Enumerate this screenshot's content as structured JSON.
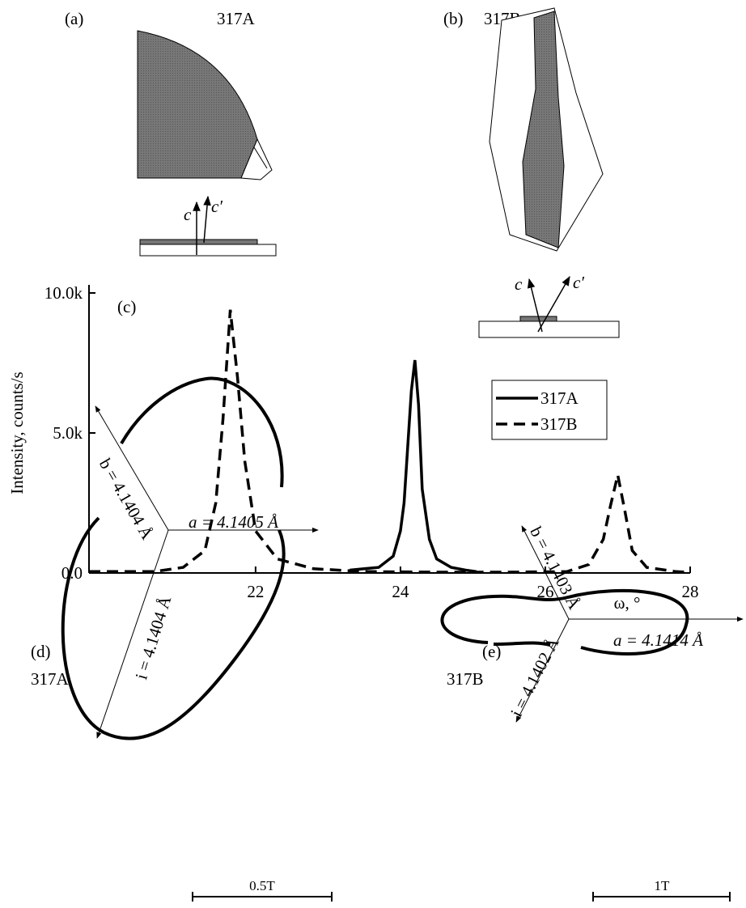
{
  "panel_a": {
    "label": "(a)",
    "sample": "317A",
    "c": "c",
    "c_prime": "c′"
  },
  "panel_b": {
    "label": "(b)",
    "sample": "317B",
    "c": "c",
    "c_prime": "c′"
  },
  "chart_data": {
    "type": "line",
    "title": "(c)",
    "x_label": "ω, °",
    "y_label": "Intensity, counts/s",
    "xlim": [
      19.7,
      28
    ],
    "ylim": [
      0,
      10000
    ],
    "xticks": [
      22,
      24,
      26,
      28
    ],
    "yticks": [
      {
        "value": 0,
        "label": "0.0"
      },
      {
        "value": 5000,
        "label": "5.0k"
      },
      {
        "value": 10000,
        "label": "10.0k"
      }
    ],
    "legend": "right",
    "series": [
      {
        "name": "317A",
        "color": "#000000",
        "style": "solid",
        "x": [
          23.3,
          23.5,
          23.7,
          23.9,
          24.0,
          24.05,
          24.1,
          24.15,
          24.2,
          24.25,
          24.3,
          24.4,
          24.5,
          24.7,
          24.9,
          25.05
        ],
        "values": [
          100,
          150,
          200,
          600,
          1500,
          2500,
          4500,
          6500,
          7600,
          6000,
          3000,
          1200,
          500,
          200,
          100,
          50
        ]
      },
      {
        "name": "317B",
        "color": "#000000",
        "style": "dashed",
        "x": [
          19.7,
          20.6,
          21.0,
          21.3,
          21.45,
          21.55,
          21.65,
          21.75,
          21.85,
          22.0,
          22.3,
          22.8,
          23.5,
          24.5,
          25.5,
          26.3,
          26.6,
          26.8,
          26.9,
          27.0,
          27.1,
          27.2,
          27.4,
          27.8,
          28.0
        ],
        "values": [
          50,
          50,
          200,
          800,
          2500,
          5500,
          9400,
          7000,
          4000,
          1500,
          500,
          150,
          50,
          30,
          30,
          50,
          300,
          1200,
          2400,
          3500,
          2200,
          800,
          200,
          50,
          20
        ]
      }
    ]
  },
  "panel_d": {
    "label": "(d)",
    "sample": "317A",
    "b_axis": "b = 4.1404 Å",
    "a_axis": "a = 4.1405 Å",
    "i_axis": "i = 4.1404 Å",
    "scale": "0.5T"
  },
  "panel_e": {
    "label": "(e)",
    "sample": "317B",
    "b_axis": "b = 4.1403 Å",
    "a_axis": "a = 4.1414 Å",
    "i_axis": "i = 4.1402 Å",
    "scale": "1T"
  }
}
